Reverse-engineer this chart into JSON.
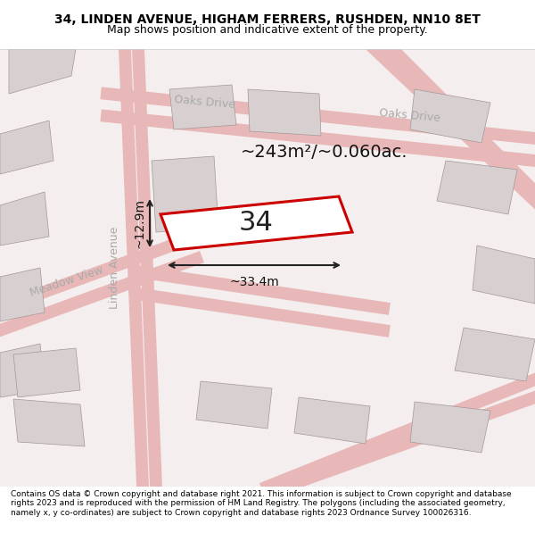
{
  "title": "34, LINDEN AVENUE, HIGHAM FERRERS, RUSHDEN, NN10 8ET",
  "subtitle": "Map shows position and indicative extent of the property.",
  "footer": "Contains OS data © Crown copyright and database right 2021. This information is subject to Crown copyright and database rights 2023 and is reproduced with the permission of HM Land Registry. The polygons (including the associated geometry, namely x, y co-ordinates) are subject to Crown copyright and database rights 2023 Ordnance Survey 100026316.",
  "area_label": "~243m²/~0.060ac.",
  "number_label": "34",
  "width_label": "~33.4m",
  "height_label": "~12.9m",
  "bg_color": "#f5f0f0",
  "map_bg": "#f5f0f0",
  "road_color": "#e8b8b8",
  "building_color": "#d8d0d0",
  "building_fill": "#d8d0d0",
  "plot_color": "#cc0000",
  "plot_fill": "white",
  "street_color": "#ccaaaa",
  "title_bg": "white",
  "footer_bg": "white"
}
